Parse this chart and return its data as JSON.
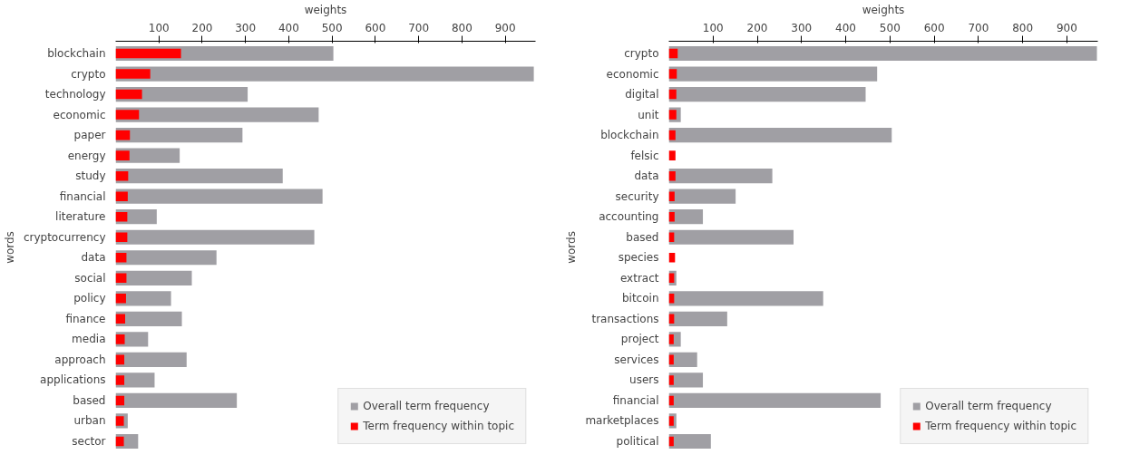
{
  "chart_data": [
    {
      "type": "bar",
      "orientation": "horizontal",
      "xlabel": "weights",
      "ylabel": "words",
      "categories": [
        "blockchain",
        "crypto",
        "technology",
        "economic",
        "paper",
        "energy",
        "study",
        "financial",
        "literature",
        "cryptocurrency",
        "data",
        "social",
        "policy",
        "finance",
        "media",
        "approach",
        "applications",
        "based",
        "urban",
        "sector"
      ],
      "series": [
        {
          "name": "Overall term frequency",
          "color": "#a09fa4",
          "values": [
            503,
            966,
            305,
            469,
            293,
            148,
            386,
            478,
            95,
            459,
            233,
            176,
            128,
            153,
            75,
            164,
            90,
            280,
            28,
            52
          ]
        },
        {
          "name": "Term frequency within topic",
          "color": "#ff0000",
          "values": [
            151,
            80,
            61,
            54,
            33,
            32,
            29,
            28,
            27,
            27,
            25,
            25,
            24,
            22,
            21,
            20,
            20,
            20,
            19,
            19
          ]
        }
      ],
      "xlim": [
        0,
        970
      ],
      "xticks": [
        100,
        200,
        300,
        400,
        500,
        600,
        700,
        800,
        900
      ],
      "grid": false,
      "legend": "bottom right"
    },
    {
      "type": "bar",
      "orientation": "horizontal",
      "xlabel": "weights",
      "ylabel": "words",
      "categories": [
        "crypto",
        "economic",
        "digital",
        "unit",
        "blockchain",
        "felsic",
        "data",
        "security",
        "accounting",
        "based",
        "species",
        "extract",
        "bitcoin",
        "transactions",
        "project",
        "services",
        "users",
        "financial",
        "marketplaces",
        "political"
      ],
      "series": [
        {
          "name": "Overall term frequency",
          "color": "#a09fa4",
          "values": [
            968,
            471,
            445,
            27,
            504,
            null,
            234,
            151,
            77,
            282,
            null,
            17,
            349,
            132,
            27,
            64,
            77,
            479,
            17,
            95
          ]
        },
        {
          "name": "Term frequency within topic",
          "color": "#ff0000",
          "values": [
            20,
            18,
            17,
            17,
            15,
            15,
            15,
            13,
            13,
            12,
            14,
            12,
            12,
            12,
            11,
            11,
            11,
            11,
            11,
            11
          ]
        }
      ],
      "xlim": [
        0,
        970
      ],
      "xticks": [
        100,
        200,
        300,
        400,
        500,
        600,
        700,
        800,
        900
      ],
      "grid": false,
      "legend": "bottom right"
    }
  ]
}
